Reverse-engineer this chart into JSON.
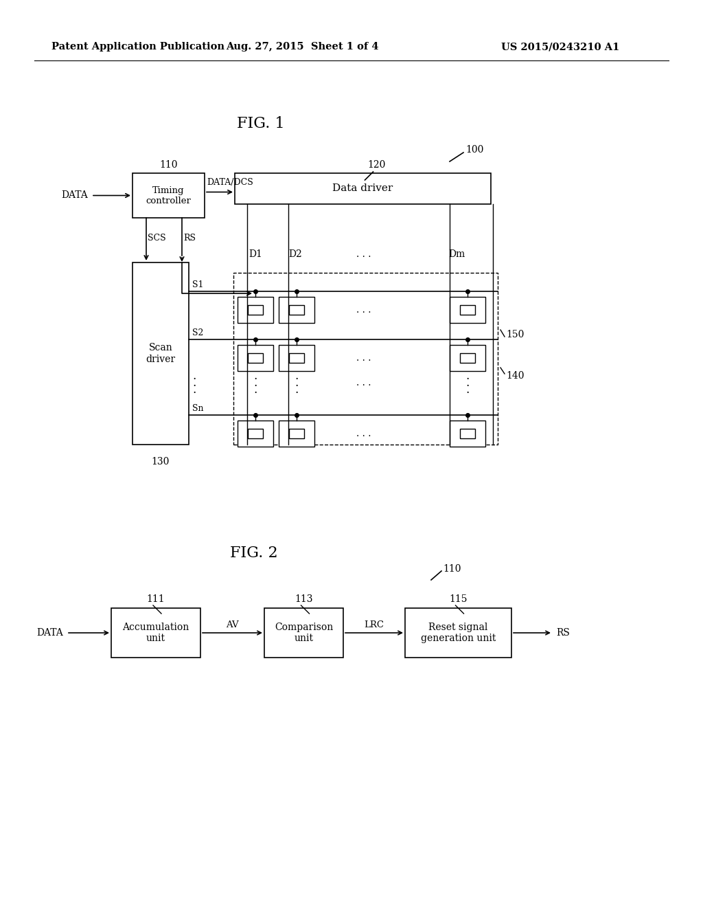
{
  "bg_color": "#ffffff",
  "header_left": "Patent Application Publication",
  "header_mid": "Aug. 27, 2015  Sheet 1 of 4",
  "header_right": "US 2015/0243210 A1",
  "fig1_title": "FIG. 1",
  "fig2_title": "FIG. 2",
  "label_100": "100",
  "label_110": "110",
  "label_120": "120",
  "label_130": "130",
  "label_140": "140",
  "label_150": "150",
  "label_111": "111",
  "label_113": "113",
  "label_115": "115",
  "label_110b": "110"
}
